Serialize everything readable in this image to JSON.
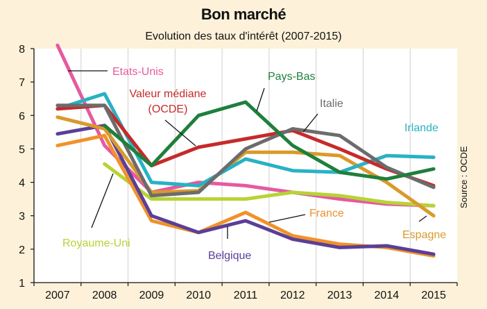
{
  "header": {
    "title": "Bon marché",
    "subtitle": "Evolution des taux d'intérêt (2007-2015)",
    "source": "Source : OCDE"
  },
  "chart_data": {
    "type": "line",
    "title": "Bon marché",
    "subtitle": "Evolution des taux d'intérêt (2007-2015)",
    "xlabel": "",
    "ylabel": "",
    "x": [
      "2007",
      "2008",
      "2009",
      "2010",
      "2011",
      "2012",
      "2013",
      "2014",
      "2015"
    ],
    "ylim": [
      1,
      8
    ],
    "yticks": [
      1,
      2,
      3,
      4,
      5,
      6,
      7,
      8
    ],
    "grid": "vertical",
    "legend": "inline labels",
    "series": [
      {
        "name": "Etats-Unis",
        "color": "#e55aa0",
        "values": [
          8.1,
          5.1,
          3.7,
          4.0,
          3.9,
          3.7,
          3.5,
          3.35,
          3.3
        ]
      },
      {
        "name": "Royaume-Uni",
        "color": "#b7d334",
        "values": [
          null,
          4.55,
          3.5,
          3.5,
          3.5,
          3.7,
          3.6,
          3.4,
          3.3
        ]
      },
      {
        "name": "France",
        "color": "#f0922a",
        "values": [
          5.1,
          5.4,
          2.85,
          2.5,
          3.1,
          2.4,
          2.15,
          2.05,
          1.8
        ]
      },
      {
        "name": "Belgique",
        "color": "#5b3f96",
        "values": [
          5.45,
          5.7,
          3.0,
          2.5,
          2.85,
          2.3,
          2.05,
          2.1,
          1.85
        ]
      },
      {
        "name": "Espagne",
        "color": "#d99a2b",
        "values": [
          5.95,
          5.6,
          3.7,
          3.75,
          4.9,
          4.9,
          4.8,
          4.0,
          3.0
        ]
      },
      {
        "name": "Irlande",
        "color": "#27b2c4",
        "values": [
          6.2,
          6.65,
          4.0,
          3.9,
          4.7,
          4.35,
          4.3,
          4.8,
          4.75
        ]
      },
      {
        "name": "Valeur médiane\n(OCDE)",
        "color": "#c62a2a",
        "values": [
          6.2,
          6.3,
          4.5,
          5.05,
          5.3,
          5.55,
          5.0,
          4.4,
          3.9
        ]
      },
      {
        "name": "Italie",
        "color": "#6c6c6c",
        "values": [
          6.3,
          6.3,
          3.6,
          3.7,
          5.0,
          5.6,
          5.4,
          4.45,
          3.85
        ]
      },
      {
        "name": "Pays-Bas",
        "color": "#1f7f3c",
        "values": [
          null,
          5.7,
          4.5,
          6.0,
          6.4,
          5.1,
          4.3,
          4.1,
          4.4
        ]
      }
    ]
  }
}
